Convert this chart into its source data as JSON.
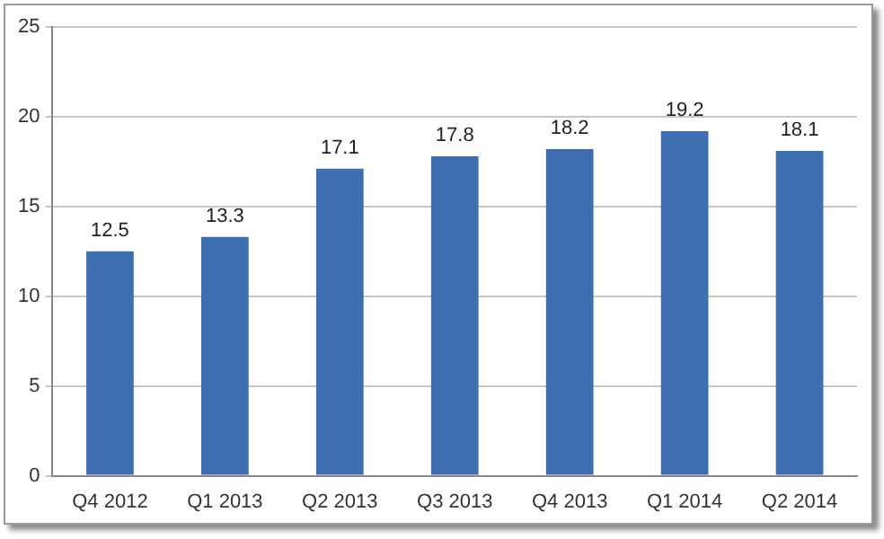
{
  "chart_data": {
    "type": "bar",
    "categories": [
      "Q4 2012",
      "Q1 2013",
      "Q2 2013",
      "Q3 2013",
      "Q4 2013",
      "Q1 2014",
      "Q2 2014"
    ],
    "values": [
      12.5,
      13.3,
      17.1,
      17.8,
      18.2,
      19.2,
      18.1
    ],
    "color": "#3f6fb0",
    "ylim": [
      0,
      25
    ],
    "yticks": [
      0,
      5,
      10,
      15,
      20,
      25
    ],
    "grid": "y",
    "data_labels": true,
    "legend": false
  }
}
